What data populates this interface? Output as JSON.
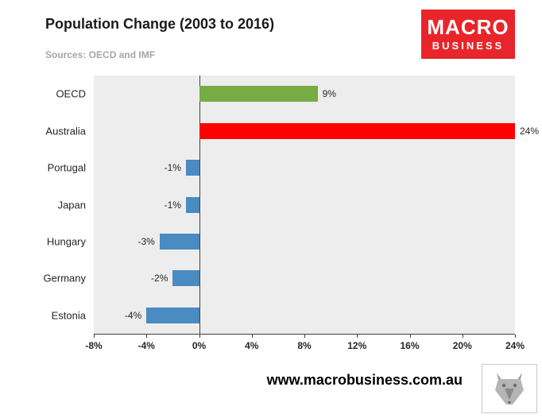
{
  "header": {
    "title": "Population Change (2003 to 2016)",
    "sources": "Sources: OECD and IMF"
  },
  "logo": {
    "line1": "MACRO",
    "line2": "BUSINESS",
    "bg_color": "#e8252a"
  },
  "footer": {
    "url": "www.macrobusiness.com.au"
  },
  "colors": {
    "plot_background": "#ededed",
    "axis": "#404040",
    "oecd_green": "#77ab43",
    "australia_red": "#ff0000",
    "negative_blue": "#4a8bc2"
  },
  "chart_data": {
    "type": "bar",
    "orientation": "horizontal",
    "title": "Population Change (2003 to 2016)",
    "subtitle": "Sources: OECD and IMF",
    "categories": [
      "OECD",
      "Australia",
      "Portugal",
      "Japan",
      "Hungary",
      "Germany",
      "Estonia"
    ],
    "values": [
      9,
      24,
      -1,
      -1,
      -3,
      -2,
      -4
    ],
    "value_labels": [
      "9%",
      "24%",
      "-1%",
      "-1%",
      "-3%",
      "-2%",
      "-4%"
    ],
    "bar_colors": [
      "#77ab43",
      "#ff0000",
      "#4a8bc2",
      "#4a8bc2",
      "#4a8bc2",
      "#4a8bc2",
      "#4a8bc2"
    ],
    "xlim": [
      -8,
      24
    ],
    "xticks": [
      -8,
      -4,
      0,
      4,
      8,
      12,
      16,
      20,
      24
    ],
    "xtick_labels": [
      "-8%",
      "-4%",
      "0%",
      "4%",
      "8%",
      "12%",
      "16%",
      "20%",
      "24%"
    ],
    "grid": false,
    "legend": false
  }
}
